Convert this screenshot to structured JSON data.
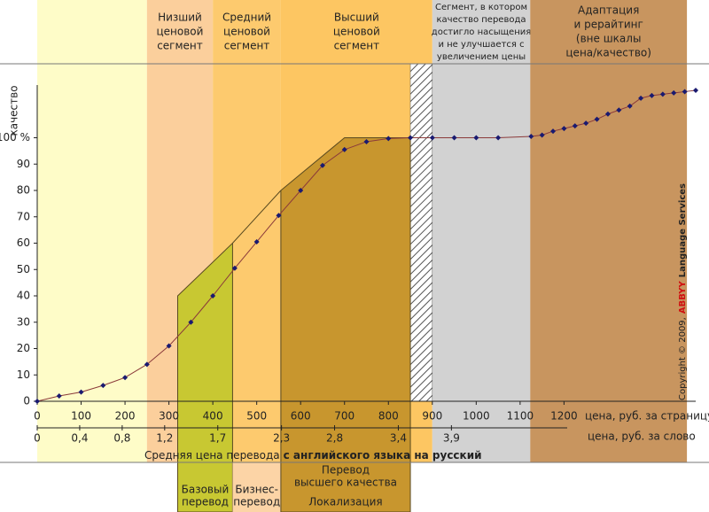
{
  "chart_data": {
    "type": "line",
    "y_label": "качество",
    "x_label": "цена, руб. за страницу",
    "x2_label": "цена, руб. за слово",
    "caption": {
      "text": "Средняя цена перевода",
      "bold": "с английского языка на русский"
    },
    "copyright": {
      "text": "Copyright © 2009,",
      "brand": "ABBYY",
      "suffix": "Language Services"
    },
    "x": [
      0,
      50,
      100,
      150,
      200,
      250,
      300,
      350,
      400,
      450,
      500,
      550,
      600,
      650,
      700,
      750,
      800,
      850,
      900,
      950,
      1000,
      1050,
      1125,
      1150,
      1175,
      1200,
      1225,
      1250,
      1275,
      1300,
      1325,
      1350,
      1375,
      1400,
      1425,
      1450,
      1475,
      1500
    ],
    "values": [
      0,
      2,
      3.5,
      6,
      9,
      14,
      21,
      30,
      40,
      50.5,
      60.5,
      70.5,
      80,
      89.5,
      95.5,
      98.5,
      99.7,
      100,
      100,
      100,
      100,
      100,
      100.5,
      101,
      102.5,
      103.5,
      104.5,
      105.5,
      107,
      109,
      110.5,
      112,
      115,
      116,
      116.5,
      117,
      117.5,
      118
    ],
    "color": "#8b3a3a",
    "marker_color": "#1a1a70",
    "xlim": [
      0,
      1500
    ],
    "ylim": [
      0,
      120
    ],
    "xticks": [
      0,
      100,
      200,
      300,
      400,
      500,
      600,
      700,
      800,
      900,
      1000,
      1100,
      1200
    ],
    "yticks": [
      0,
      10,
      20,
      30,
      40,
      50,
      60,
      70,
      80,
      90,
      {
        "value": 100,
        "label": "100 %"
      }
    ],
    "x2lim": [
      0,
      6.2
    ],
    "x2ticks": [
      0,
      {
        "value": 0.4,
        "label": "0,4"
      },
      {
        "value": 0.8,
        "label": "0,8"
      },
      {
        "value": 1.2,
        "label": "1,2"
      },
      {
        "value": 1.7,
        "label": "1,7"
      },
      {
        "value": 2.3,
        "label": "2,3"
      },
      {
        "value": 2.8,
        "label": "2,8"
      },
      {
        "value": 3.4,
        "label": "3,4"
      },
      {
        "value": 3.9,
        "label": "3,9"
      }
    ],
    "segments": [
      {
        "x": [
          0,
          250
        ],
        "color": "#fefcc8",
        "label": []
      },
      {
        "x": [
          250,
          400
        ],
        "color": "#fbcf9c",
        "label": [
          "Низший",
          "ценовой",
          "сегмент"
        ]
      },
      {
        "x": [
          400,
          555
        ],
        "color": "#fdca6e",
        "label": [
          "Средний",
          "ценовой",
          "сегмент"
        ]
      },
      {
        "x": [
          555,
          900
        ],
        "color": "#fdc662",
        "label": [
          "Высший",
          "ценовой",
          "сегмент"
        ]
      },
      {
        "x": [
          900,
          1123
        ],
        "color": "#d2d2d2",
        "label": [
          "Сегмент, в котором",
          "качество перевода",
          "достигло насыщения",
          "и не улучшается с",
          "увеличением цены"
        ],
        "small": true
      },
      {
        "x": [
          1123,
          1480
        ],
        "color": "#c8955f",
        "label": [
          "Адаптация",
          "и рерайтинг",
          "(вне шкалы",
          "цена/качество)"
        ]
      }
    ],
    "hatch_x": [
      850,
      900
    ],
    "regions": [
      {
        "x": [
          320,
          445
        ],
        "y": [
          40,
          60
        ],
        "color": "#c8c832",
        "filled": true,
        "label": [
          "Базовый",
          "перевод"
        ],
        "sublabel": []
      },
      {
        "x": [
          445,
          555
        ],
        "y": [
          60,
          80
        ],
        "color": "#fcd4a6",
        "filled": false,
        "label": [
          "Бизнес-",
          "перевод"
        ],
        "sublabel": []
      },
      {
        "x": [
          555,
          700,
          850
        ],
        "y": [
          80,
          100,
          100
        ],
        "color": "#c8962e",
        "filled": true,
        "label": [
          "Перевод",
          "высшего качества"
        ],
        "sublabel": [
          "Локализация"
        ]
      }
    ]
  }
}
